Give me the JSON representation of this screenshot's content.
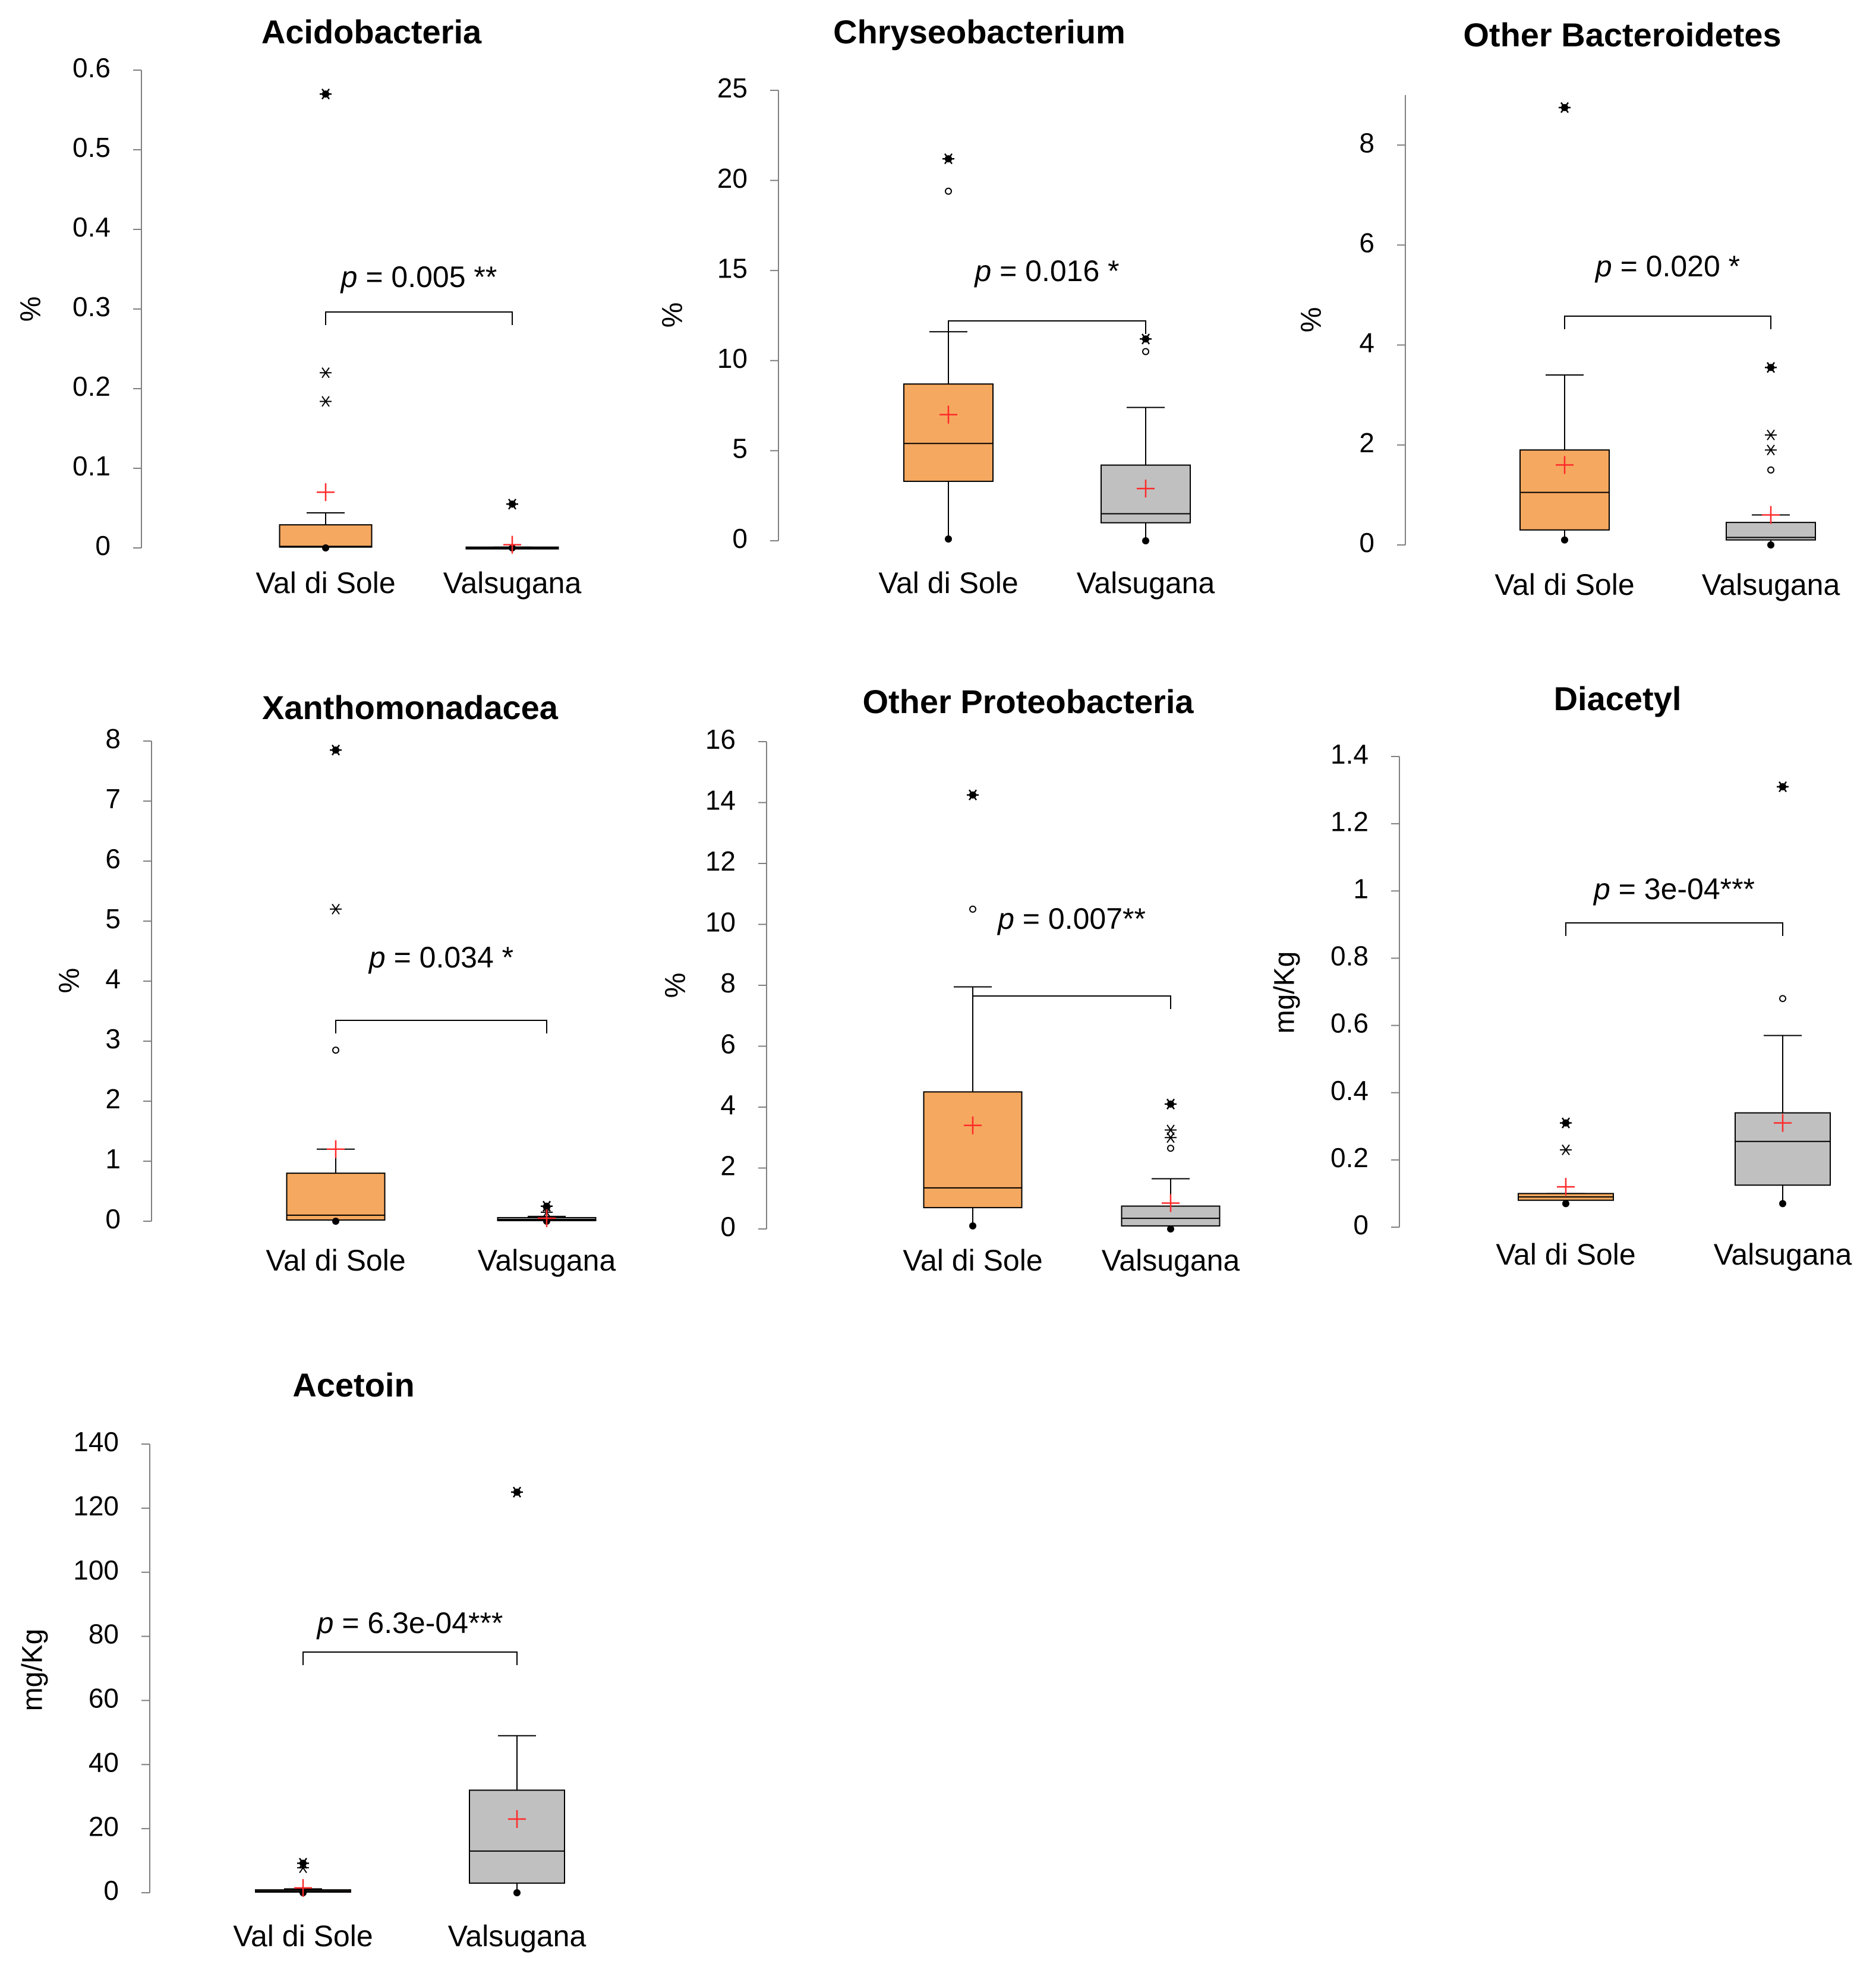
{
  "colors": {
    "val_di_sole_box": "#F5A85F",
    "valsugana_box": "#C0C0C0",
    "mean_marker": "#FF2A2A",
    "axis": "#7F7F7F",
    "ink": "#000000"
  },
  "chart_data": [
    {
      "type": "box",
      "title": "Acidobacteria",
      "ylabel": "%",
      "ylim": [
        0,
        0.6
      ],
      "yticks": [
        "0",
        "0.1",
        "0.2",
        "0.3",
        "0.4",
        "0.5",
        "0.6"
      ],
      "categories": [
        "Val di Sole",
        "Valsugana"
      ],
      "groups": [
        {
          "name": "Val di Sole",
          "min": 0,
          "q1": 0.001,
          "median": 0.002,
          "q3": 0.029,
          "whisker_high": 0.044,
          "mean": 0.07,
          "outliers": [
            {
              "value": 0.57,
              "marker": "max"
            },
            {
              "value": 0.22,
              "marker": "far"
            },
            {
              "value": 0.184,
              "marker": "far"
            }
          ]
        },
        {
          "name": "Valsugana",
          "min": 0,
          "q1": 0,
          "median": 0,
          "q3": 0.001,
          "whisker_high": 0.001,
          "mean": 0.004,
          "outliers": [
            {
              "value": 0.055,
              "marker": "max"
            }
          ]
        }
      ],
      "test": {
        "p_label": "p",
        "p_text": " = 0.005 **"
      }
    },
    {
      "type": "box",
      "title": "Chryseobacterium",
      "ylabel": "%",
      "ylim": [
        0,
        25
      ],
      "yticks": [
        "0",
        "5",
        "10",
        "15",
        "20",
        "25"
      ],
      "categories": [
        "Val di Sole",
        "Valsugana"
      ],
      "groups": [
        {
          "name": "Val di Sole",
          "min": 0.1,
          "q1": 3.3,
          "median": 5.4,
          "q3": 8.7,
          "whisker_high": 11.6,
          "mean": 7.0,
          "outliers": [
            {
              "value": 21.2,
              "marker": "max"
            },
            {
              "value": 19.4,
              "marker": "near"
            }
          ]
        },
        {
          "name": "Valsugana",
          "min": 0,
          "q1": 1.0,
          "median": 1.5,
          "q3": 4.2,
          "whisker_high": 7.4,
          "mean": 2.9,
          "outliers": [
            {
              "value": 11.2,
              "marker": "max"
            },
            {
              "value": 10.5,
              "marker": "near"
            }
          ]
        }
      ],
      "test": {
        "p_label": "p",
        "p_text": " = 0.016 *"
      }
    },
    {
      "type": "box",
      "title": "Other Bacteroidetes",
      "ylabel": "%",
      "ylim": [
        0,
        9
      ],
      "yticks": [
        "0",
        "2",
        "4",
        "6",
        "8"
      ],
      "categories": [
        "Val di Sole",
        "Valsugana"
      ],
      "groups": [
        {
          "name": "Val di Sole",
          "min": 0.1,
          "q1": 0.3,
          "median": 1.05,
          "q3": 1.9,
          "whisker_high": 3.4,
          "mean": 1.6,
          "outliers": [
            {
              "value": 8.75,
              "marker": "max"
            }
          ]
        },
        {
          "name": "Valsugana",
          "min": 0,
          "q1": 0.1,
          "median": 0.15,
          "q3": 0.45,
          "whisker_high": 0.6,
          "mean": 0.6,
          "outliers": [
            {
              "value": 3.55,
              "marker": "max"
            },
            {
              "value": 2.2,
              "marker": "far"
            },
            {
              "value": 1.9,
              "marker": "far"
            },
            {
              "value": 1.5,
              "marker": "near"
            }
          ]
        }
      ],
      "test": {
        "p_label": "p",
        "p_text": " = 0.020 *"
      }
    },
    {
      "type": "box",
      "title": "Xanthomonadacea",
      "ylabel": "%",
      "ylim": [
        0,
        8
      ],
      "yticks": [
        "0",
        "1",
        "2",
        "3",
        "4",
        "5",
        "6",
        "7",
        "8"
      ],
      "categories": [
        "Val di Sole",
        "Valsugana"
      ],
      "groups": [
        {
          "name": "Val di Sole",
          "min": 0,
          "q1": 0.02,
          "median": 0.1,
          "q3": 0.8,
          "whisker_high": 1.2,
          "mean": 1.2,
          "outliers": [
            {
              "value": 7.85,
              "marker": "max"
            },
            {
              "value": 5.2,
              "marker": "far"
            },
            {
              "value": 2.85,
              "marker": "near"
            }
          ]
        },
        {
          "name": "Valsugana",
          "min": 0,
          "q1": 0.01,
          "median": 0.03,
          "q3": 0.06,
          "whisker_high": 0.08,
          "mean": 0.05,
          "outliers": [
            {
              "value": 0.25,
              "marker": "max"
            },
            {
              "value": 0.15,
              "marker": "far"
            }
          ]
        }
      ],
      "test": {
        "p_label": "p",
        "p_text": " = 0.034 *"
      }
    },
    {
      "type": "box",
      "title": "Other Proteobacteria",
      "ylabel": "%",
      "ylim": [
        0,
        16
      ],
      "yticks": [
        "0",
        "2",
        "4",
        "6",
        "8",
        "10",
        "12",
        "14",
        "16"
      ],
      "categories": [
        "Val di Sole",
        "Valsugana"
      ],
      "groups": [
        {
          "name": "Val di Sole",
          "min": 0.1,
          "q1": 0.7,
          "median": 1.35,
          "q3": 4.5,
          "whisker_high": 7.95,
          "mean": 3.4,
          "outliers": [
            {
              "value": 14.25,
              "marker": "max"
            },
            {
              "value": 10.5,
              "marker": "near"
            }
          ]
        },
        {
          "name": "Valsugana",
          "min": 0,
          "q1": 0.1,
          "median": 0.35,
          "q3": 0.75,
          "whisker_high": 1.65,
          "mean": 0.85,
          "outliers": [
            {
              "value": 4.1,
              "marker": "max"
            },
            {
              "value": 3.25,
              "marker": "far"
            },
            {
              "value": 3.0,
              "marker": "far"
            },
            {
              "value": 2.65,
              "marker": "near"
            }
          ]
        }
      ],
      "test": {
        "p_label": "p",
        "p_text": " = 0.007**"
      }
    },
    {
      "type": "box",
      "title": "Diacetyl",
      "ylabel": "mg/Kg",
      "ylim": [
        0,
        1.4
      ],
      "yticks": [
        "0",
        "0.2",
        "0.4",
        "0.6",
        "0.8",
        "1",
        "1.2",
        "1.4"
      ],
      "categories": [
        "Val di Sole",
        "Valsugana"
      ],
      "groups": [
        {
          "name": "Val di Sole",
          "min": 0.07,
          "q1": 0.08,
          "median": 0.09,
          "q3": 0.1,
          "whisker_high": 0.1,
          "mean": 0.12,
          "outliers": [
            {
              "value": 0.31,
              "marker": "max"
            },
            {
              "value": 0.23,
              "marker": "far"
            }
          ]
        },
        {
          "name": "Valsugana",
          "min": 0.07,
          "q1": 0.125,
          "median": 0.255,
          "q3": 0.34,
          "whisker_high": 0.57,
          "mean": 0.31,
          "outliers": [
            {
              "value": 1.31,
              "marker": "max"
            },
            {
              "value": 0.68,
              "marker": "near"
            }
          ]
        }
      ],
      "test": {
        "p_label": "p",
        "p_text": " = 3e-04***"
      }
    },
    {
      "type": "box",
      "title": "Acetoin",
      "ylabel": "mg/Kg",
      "ylim": [
        0,
        140
      ],
      "yticks": [
        "0",
        "20",
        "40",
        "60",
        "80",
        "100",
        "120",
        "140"
      ],
      "categories": [
        "Val di Sole",
        "Valsugana"
      ],
      "groups": [
        {
          "name": "Val di Sole",
          "min": 0,
          "q1": 0.2,
          "median": 0.5,
          "q3": 0.9,
          "whisker_high": 1.2,
          "mean": 1.5,
          "outliers": [
            {
              "value": 9.2,
              "marker": "max"
            },
            {
              "value": 7.8,
              "marker": "far"
            }
          ]
        },
        {
          "name": "Valsugana",
          "min": 0,
          "q1": 3.0,
          "median": 13.0,
          "q3": 32.0,
          "whisker_high": 49.0,
          "mean": 23.0,
          "outliers": [
            {
              "value": 125.0,
              "marker": "max"
            }
          ]
        }
      ],
      "test": {
        "p_label": "p",
        "p_text": " = 6.3e-04***"
      }
    }
  ]
}
